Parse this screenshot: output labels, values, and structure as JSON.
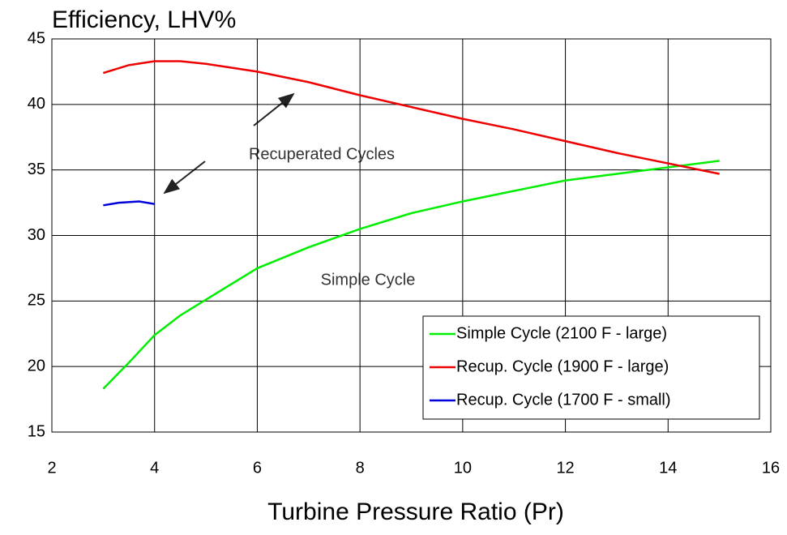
{
  "chart_data": {
    "type": "line",
    "title": "Efficiency, LHV%",
    "x_label": "Turbine Pressure Ratio (Pr)",
    "annotations": [
      "Recuperated Cycles",
      "Simple Cycle"
    ],
    "xlim": [
      2,
      16
    ],
    "xticks": [
      2,
      4,
      6,
      8,
      10,
      12,
      14,
      16
    ],
    "ylim": [
      15,
      45
    ],
    "yticks": [
      15,
      20,
      25,
      30,
      35,
      40,
      45
    ],
    "grid": true,
    "legend": "lower right",
    "series": [
      {
        "name": "Simple Cycle (2100 F - large)",
        "color": "#00ee00",
        "x": [
          3,
          3.5,
          4,
          4.5,
          5,
          6,
          7,
          8,
          9,
          10,
          11,
          12,
          13,
          14,
          15
        ],
        "values": [
          18.3,
          20.3,
          22.4,
          23.9,
          25.1,
          27.5,
          29.1,
          30.5,
          31.7,
          32.6,
          33.4,
          34.2,
          34.7,
          35.2,
          35.7
        ]
      },
      {
        "name": "Recup. Cycle (1900 F - large)",
        "color": "#ee0000",
        "x": [
          3,
          3.5,
          4,
          4.5,
          5,
          6,
          7,
          8,
          9,
          10,
          11,
          12,
          13,
          14,
          15
        ],
        "values": [
          42.4,
          43.0,
          43.3,
          43.3,
          43.1,
          42.5,
          41.7,
          40.7,
          39.8,
          38.9,
          38.1,
          37.2,
          36.3,
          35.5,
          34.7
        ]
      },
      {
        "name": "Recup. Cycle (1700 F - small)",
        "color": "#0000dd",
        "x": [
          3,
          3.3,
          3.7,
          4
        ],
        "values": [
          32.3,
          32.5,
          32.6,
          32.4
        ]
      }
    ]
  }
}
